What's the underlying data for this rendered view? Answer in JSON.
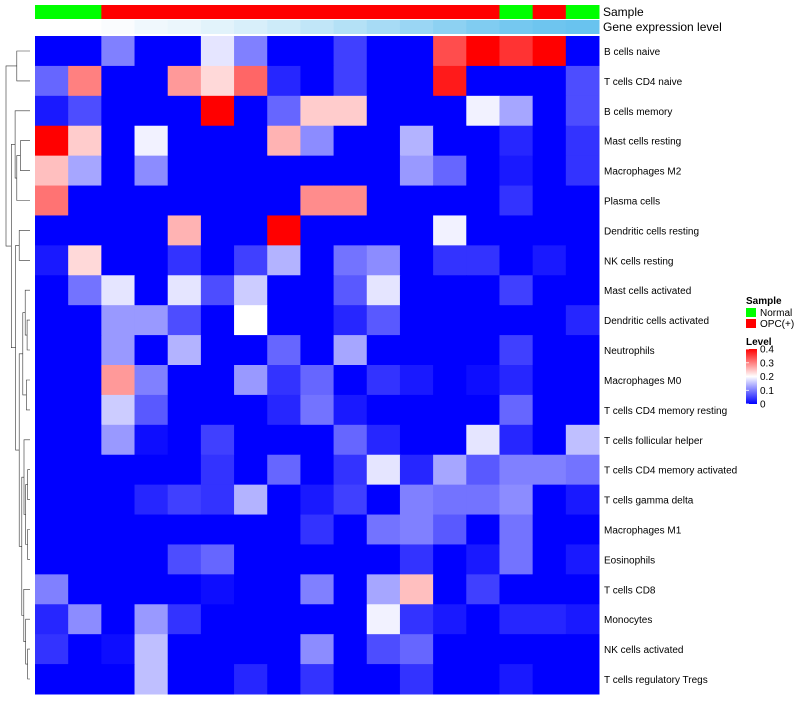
{
  "chart_data": {
    "type": "heatmap",
    "annotation_tracks": [
      "Sample",
      "Gene expression level"
    ],
    "row_labels": [
      "B cells naive",
      "T cells CD4 naive",
      "B cells memory",
      "Mast cells resting",
      "Macrophages M2",
      "Plasma cells",
      "Dendritic cells resting",
      "NK cells resting",
      "Mast cells activated",
      "Dendritic cells activated",
      "Neutrophils",
      "Macrophages M0",
      "T cells CD4 memory resting",
      "T cells follicular helper",
      "T cells CD4 memory activated",
      "T cells gamma delta",
      "Macrophages M1",
      "Eosinophils",
      "T cells CD8",
      "Monocytes",
      "NK cells activated",
      "T cells regulatory  Tregs"
    ],
    "sample_groups": [
      "Normal",
      "Normal",
      "OPC(+)",
      "OPC(+)",
      "OPC(+)",
      "OPC(+)",
      "OPC(+)",
      "OPC(+)",
      "OPC(+)",
      "OPC(+)",
      "OPC(+)",
      "OPC(+)",
      "OPC(+)",
      "OPC(+)",
      "Normal",
      "OPC(+)",
      "Normal"
    ],
    "expression_level_colors": [
      "#ffffff",
      "#ffffff",
      "#fafcfe",
      "#f0f8fd",
      "#ebf6fc",
      "#e2f3fb",
      "#d8effa",
      "#cdebf9",
      "#c1e6f8",
      "#b4e1f6",
      "#a7dbf5",
      "#9ad6f4",
      "#8dd1f2",
      "#80ccf1",
      "#75c8f0",
      "#6ec5ef",
      "#69c3ef"
    ],
    "values": [
      [
        0.0,
        0.0,
        0.1,
        0.0,
        0.0,
        0.18,
        0.1,
        0.0,
        0.0,
        0.05,
        0.0,
        0.0,
        0.34,
        0.4,
        0.36,
        0.4,
        0.0
      ],
      [
        0.08,
        0.3,
        0.0,
        0.0,
        0.28,
        0.23,
        0.32,
        0.03,
        0.0,
        0.05,
        0.0,
        0.0,
        0.38,
        0.0,
        0.0,
        0.0,
        0.06
      ],
      [
        0.02,
        0.06,
        0.0,
        0.0,
        0.0,
        0.4,
        0.0,
        0.08,
        0.24,
        0.24,
        0.0,
        0.0,
        0.0,
        0.19,
        0.13,
        0.0,
        0.06
      ],
      [
        0.4,
        0.24,
        0.0,
        0.19,
        0.0,
        0.0,
        0.0,
        0.26,
        0.11,
        0.0,
        0.0,
        0.14,
        0.0,
        0.0,
        0.03,
        0.0,
        0.04
      ],
      [
        0.25,
        0.13,
        0.0,
        0.11,
        0.0,
        0.0,
        0.0,
        0.0,
        0.0,
        0.0,
        0.0,
        0.12,
        0.08,
        0.0,
        0.02,
        0.0,
        0.04
      ],
      [
        0.31,
        0.0,
        0.0,
        0.0,
        0.0,
        0.0,
        0.0,
        0.0,
        0.29,
        0.29,
        0.0,
        0.0,
        0.0,
        0.0,
        0.04,
        0.0,
        0.0
      ],
      [
        0.0,
        0.0,
        0.0,
        0.0,
        0.26,
        0.0,
        0.0,
        0.4,
        0.0,
        0.0,
        0.0,
        0.0,
        0.19,
        0.0,
        0.0,
        0.0,
        0.0
      ],
      [
        0.02,
        0.23,
        0.0,
        0.0,
        0.04,
        0.0,
        0.05,
        0.14,
        0.0,
        0.09,
        0.11,
        0.0,
        0.04,
        0.04,
        0.0,
        0.02,
        0.0
      ],
      [
        0.0,
        0.09,
        0.18,
        0.0,
        0.18,
        0.06,
        0.16,
        0.0,
        0.0,
        0.07,
        0.18,
        0.0,
        0.0,
        0.0,
        0.05,
        0.0,
        0.0
      ],
      [
        0.0,
        0.0,
        0.12,
        0.12,
        0.06,
        0.0,
        0.2,
        0.0,
        0.0,
        0.03,
        0.07,
        0.0,
        0.0,
        0.0,
        0.0,
        0.0,
        0.03
      ],
      [
        0.0,
        0.0,
        0.12,
        0.0,
        0.14,
        0.0,
        0.0,
        0.08,
        0.0,
        0.13,
        0.0,
        0.0,
        0.0,
        0.0,
        0.05,
        0.0,
        0.0
      ],
      [
        0.0,
        0.0,
        0.28,
        0.1,
        0.0,
        0.0,
        0.12,
        0.04,
        0.08,
        0.0,
        0.04,
        0.02,
        0.0,
        0.01,
        0.03,
        0.0,
        0.0
      ],
      [
        0.0,
        0.0,
        0.16,
        0.07,
        0.0,
        0.0,
        0.0,
        0.03,
        0.09,
        0.02,
        0.0,
        0.0,
        0.0,
        0.0,
        0.08,
        0.0,
        0.0
      ],
      [
        0.0,
        0.0,
        0.12,
        0.01,
        0.0,
        0.05,
        0.0,
        0.0,
        0.0,
        0.08,
        0.03,
        0.0,
        0.0,
        0.18,
        0.03,
        0.0,
        0.15
      ],
      [
        0.0,
        0.0,
        0.0,
        0.0,
        0.0,
        0.04,
        0.0,
        0.08,
        0.0,
        0.04,
        0.18,
        0.03,
        0.13,
        0.07,
        0.1,
        0.1,
        0.09
      ],
      [
        0.0,
        0.0,
        0.0,
        0.03,
        0.05,
        0.04,
        0.14,
        0.0,
        0.02,
        0.05,
        0.0,
        0.1,
        0.09,
        0.09,
        0.11,
        0.0,
        0.02
      ],
      [
        0.0,
        0.0,
        0.0,
        0.0,
        0.0,
        0.0,
        0.0,
        0.0,
        0.04,
        0.0,
        0.09,
        0.1,
        0.07,
        0.0,
        0.09,
        0.0,
        0.0
      ],
      [
        0.0,
        0.0,
        0.0,
        0.0,
        0.06,
        0.08,
        0.0,
        0.0,
        0.0,
        0.0,
        0.0,
        0.04,
        0.0,
        0.02,
        0.09,
        0.0,
        0.02
      ],
      [
        0.1,
        0.0,
        0.0,
        0.0,
        0.0,
        0.01,
        0.0,
        0.0,
        0.1,
        0.0,
        0.13,
        0.25,
        0.0,
        0.05,
        0.0,
        0.0,
        0.0
      ],
      [
        0.03,
        0.11,
        0.0,
        0.12,
        0.04,
        0.0,
        0.0,
        0.0,
        0.0,
        0.0,
        0.19,
        0.04,
        0.02,
        0.0,
        0.03,
        0.03,
        0.02
      ],
      [
        0.04,
        0.0,
        0.01,
        0.15,
        0.0,
        0.0,
        0.0,
        0.0,
        0.11,
        0.0,
        0.06,
        0.08,
        0.0,
        0.0,
        0.0,
        0.0,
        0.0
      ],
      [
        0.0,
        0.0,
        0.0,
        0.15,
        0.0,
        0.0,
        0.03,
        0.0,
        0.04,
        0.0,
        0.0,
        0.04,
        0.0,
        0.0,
        0.02,
        0.0,
        0.0
      ]
    ],
    "colors": {
      "low": "#0000ff",
      "mid": "#ffffff",
      "high": "#ff0000",
      "normal": "#00ff00",
      "opc": "#ff0000"
    },
    "scale": {
      "min": 0,
      "max": 0.4
    },
    "legend": {
      "sample_title": "Sample",
      "sample_entries": [
        "Normal",
        "OPC(+)"
      ],
      "level_title": "Level",
      "level_ticks": [
        "0.4",
        "0.3",
        "0.2",
        "0.1",
        "0"
      ],
      "position": "right"
    }
  }
}
